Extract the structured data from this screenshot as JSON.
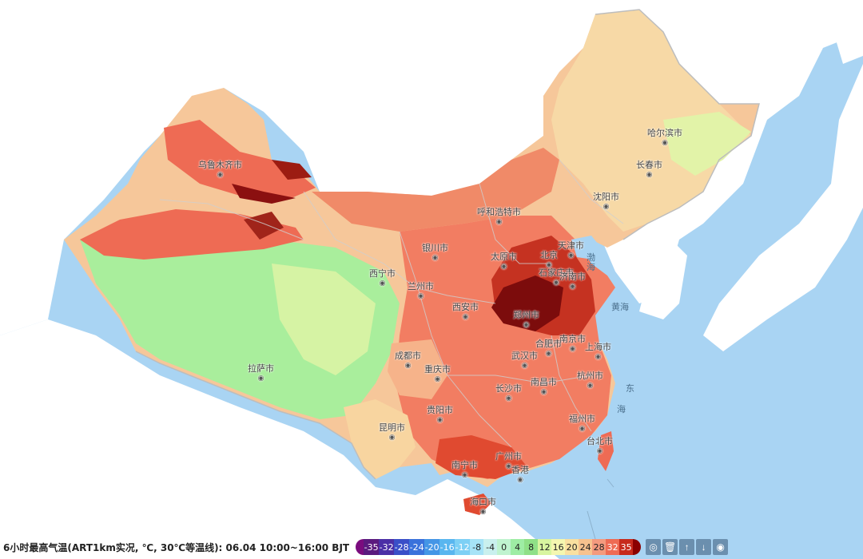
{
  "caption": "6小时最高气温(ART1km实况, ℃, 30℃等温线): 06.04 10:00~16:00 BJT",
  "legend": {
    "labels": [
      "-35",
      "-32",
      "-28",
      "-24",
      "-20",
      "-16",
      "-12",
      "-8",
      "-4",
      "0",
      "4",
      "8",
      "12",
      "16",
      "20",
      "24",
      "28",
      "32",
      "35"
    ],
    "colors": [
      "#5b1a7e",
      "#4b2fa6",
      "#3a4fc8",
      "#3a72db",
      "#4496e6",
      "#59b6ef",
      "#7dd0f5",
      "#a6e3f7",
      "#c9f0ee",
      "#bff3cf",
      "#9eeda4",
      "#8fe087",
      "#d8f5a0",
      "#f4f7b0",
      "#f9e0a0",
      "#f7c28e",
      "#f49a7e",
      "#ee6b54",
      "#c72a1c"
    ]
  },
  "cities": [
    {
      "name": "乌鲁木齐市"
    },
    {
      "name": "呼和浩特市"
    },
    {
      "name": "哈尔滨市"
    },
    {
      "name": "长春市"
    },
    {
      "name": "沈阳市"
    },
    {
      "name": "银川市"
    },
    {
      "name": "太原市"
    },
    {
      "name": "北京"
    },
    {
      "name": "天津市"
    },
    {
      "name": "石家庄市"
    },
    {
      "name": "济南市"
    },
    {
      "name": "西宁市"
    },
    {
      "name": "兰州市"
    },
    {
      "name": "西安市"
    },
    {
      "name": "郑州市"
    },
    {
      "name": "合肥市"
    },
    {
      "name": "南京市"
    },
    {
      "name": "上海市"
    },
    {
      "name": "武汉市"
    },
    {
      "name": "杭州市"
    },
    {
      "name": "成都市"
    },
    {
      "name": "重庆市"
    },
    {
      "name": "长沙市"
    },
    {
      "name": "南昌市"
    },
    {
      "name": "拉萨市"
    },
    {
      "name": "贵阳市"
    },
    {
      "name": "福州市"
    },
    {
      "name": "昆明市"
    },
    {
      "name": "台北市"
    },
    {
      "name": "广州市"
    },
    {
      "name": "南宁市"
    },
    {
      "name": "香港"
    },
    {
      "name": "海口市"
    }
  ],
  "seas": [
    "渤",
    "海",
    "黄海",
    "东",
    "海"
  ],
  "toolbar": [
    "target-icon",
    "trash-icon",
    "arrow-up-icon",
    "arrow-down-icon",
    "eye-icon"
  ],
  "colors": {
    "ocean": "#a9d4f3",
    "land": "#ffffff",
    "hot": "#c72a1c",
    "cool": "#9eeda4"
  }
}
